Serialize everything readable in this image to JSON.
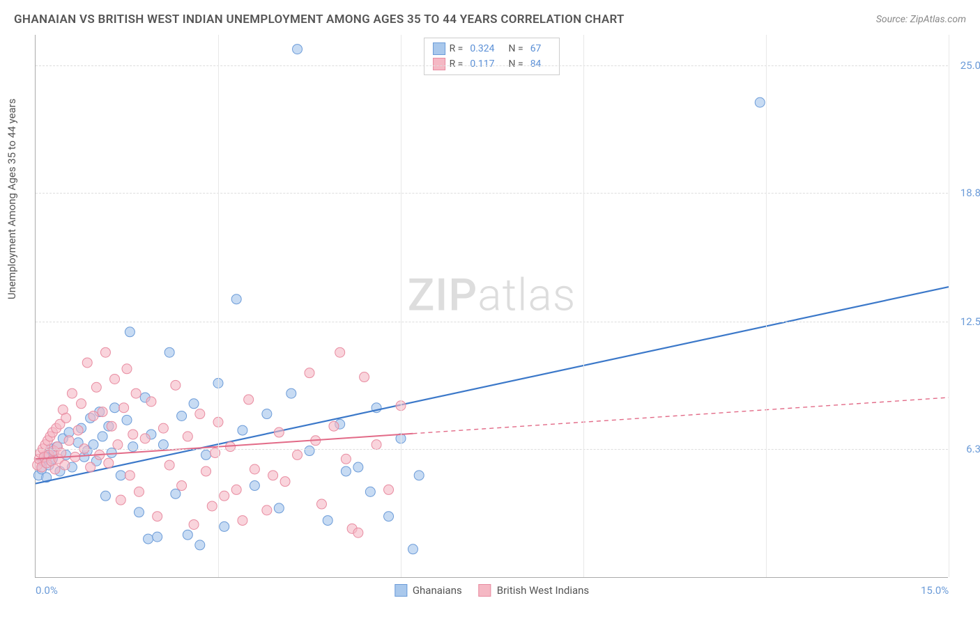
{
  "header": {
    "title": "GHANAIAN VS BRITISH WEST INDIAN UNEMPLOYMENT AMONG AGES 35 TO 44 YEARS CORRELATION CHART",
    "source": "Source: ZipAtlas.com"
  },
  "chart": {
    "type": "scatter",
    "ylabel": "Unemployment Among Ages 35 to 44 years",
    "watermark_zip": "ZIP",
    "watermark_atlas": "atlas",
    "xlim": [
      0,
      15
    ],
    "ylim": [
      0,
      26.5
    ],
    "x_ticks": [
      {
        "v": 0,
        "label": "0.0%"
      },
      {
        "v": 15,
        "label": "15.0%"
      }
    ],
    "x_gridlines": [
      3,
      6,
      9,
      12,
      15
    ],
    "y_ticks": [
      {
        "v": 6.3,
        "label": "6.3%"
      },
      {
        "v": 12.5,
        "label": "12.5%"
      },
      {
        "v": 18.8,
        "label": "18.8%"
      },
      {
        "v": 25.0,
        "label": "25.0%"
      }
    ],
    "background_color": "#ffffff",
    "grid_color": "#dddddd",
    "series": [
      {
        "name": "Ghanaians",
        "color_fill": "#a9c8ec",
        "color_stroke": "#6b9bd8",
        "r_value": "0.324",
        "n_value": "67",
        "marker_radius": 7,
        "marker_opacity": 0.65,
        "regression": {
          "x1": 0,
          "y1": 4.6,
          "x2": 15,
          "y2": 14.2,
          "solid_until_x": 15,
          "stroke": "#3b78c9",
          "width": 2.2
        },
        "points": [
          [
            0.05,
            5.0
          ],
          [
            0.1,
            5.3
          ],
          [
            0.12,
            5.7
          ],
          [
            0.15,
            5.9
          ],
          [
            0.18,
            4.9
          ],
          [
            0.2,
            6.0
          ],
          [
            0.22,
            5.5
          ],
          [
            0.25,
            6.3
          ],
          [
            0.28,
            5.8
          ],
          [
            0.3,
            6.1
          ],
          [
            0.35,
            6.4
          ],
          [
            0.4,
            5.2
          ],
          [
            0.45,
            6.8
          ],
          [
            0.5,
            6.0
          ],
          [
            0.55,
            7.1
          ],
          [
            0.6,
            5.4
          ],
          [
            0.7,
            6.6
          ],
          [
            0.75,
            7.3
          ],
          [
            0.8,
            5.9
          ],
          [
            0.85,
            6.2
          ],
          [
            0.9,
            7.8
          ],
          [
            0.95,
            6.5
          ],
          [
            1.0,
            5.7
          ],
          [
            1.05,
            8.1
          ],
          [
            1.1,
            6.9
          ],
          [
            1.15,
            4.0
          ],
          [
            1.2,
            7.4
          ],
          [
            1.25,
            6.1
          ],
          [
            1.3,
            8.3
          ],
          [
            1.4,
            5.0
          ],
          [
            1.5,
            7.7
          ],
          [
            1.55,
            12.0
          ],
          [
            1.6,
            6.4
          ],
          [
            1.7,
            3.2
          ],
          [
            1.8,
            8.8
          ],
          [
            1.85,
            1.9
          ],
          [
            1.9,
            7.0
          ],
          [
            2.0,
            2.0
          ],
          [
            2.1,
            6.5
          ],
          [
            2.2,
            11.0
          ],
          [
            2.3,
            4.1
          ],
          [
            2.4,
            7.9
          ],
          [
            2.5,
            2.1
          ],
          [
            2.6,
            8.5
          ],
          [
            2.7,
            1.6
          ],
          [
            2.8,
            6.0
          ],
          [
            3.0,
            9.5
          ],
          [
            3.1,
            2.5
          ],
          [
            3.3,
            13.6
          ],
          [
            3.4,
            7.2
          ],
          [
            3.6,
            4.5
          ],
          [
            3.8,
            8.0
          ],
          [
            4.0,
            3.4
          ],
          [
            4.2,
            9.0
          ],
          [
            4.3,
            25.8
          ],
          [
            4.5,
            6.2
          ],
          [
            4.8,
            2.8
          ],
          [
            5.0,
            7.5
          ],
          [
            5.1,
            5.2
          ],
          [
            5.3,
            5.4
          ],
          [
            5.5,
            4.2
          ],
          [
            5.6,
            8.3
          ],
          [
            5.8,
            3.0
          ],
          [
            6.0,
            6.8
          ],
          [
            6.2,
            1.4
          ],
          [
            6.3,
            5.0
          ],
          [
            11.9,
            23.2
          ]
        ]
      },
      {
        "name": "British West Indians",
        "color_fill": "#f5b8c4",
        "color_stroke": "#e88ba0",
        "r_value": "0.117",
        "n_value": "84",
        "marker_radius": 7,
        "marker_opacity": 0.6,
        "regression": {
          "x1": 0,
          "y1": 5.8,
          "x2": 15,
          "y2": 8.8,
          "solid_until_x": 6.2,
          "stroke": "#e26a87",
          "width": 2,
          "dash": "6,5"
        },
        "points": [
          [
            0.03,
            5.5
          ],
          [
            0.06,
            5.8
          ],
          [
            0.08,
            6.1
          ],
          [
            0.1,
            5.4
          ],
          [
            0.12,
            6.3
          ],
          [
            0.14,
            5.9
          ],
          [
            0.16,
            6.5
          ],
          [
            0.18,
            5.6
          ],
          [
            0.2,
            6.7
          ],
          [
            0.22,
            6.0
          ],
          [
            0.24,
            6.9
          ],
          [
            0.26,
            5.7
          ],
          [
            0.28,
            7.1
          ],
          [
            0.3,
            6.2
          ],
          [
            0.32,
            5.3
          ],
          [
            0.34,
            7.3
          ],
          [
            0.36,
            6.4
          ],
          [
            0.38,
            5.8
          ],
          [
            0.4,
            7.5
          ],
          [
            0.42,
            6.1
          ],
          [
            0.45,
            8.2
          ],
          [
            0.48,
            5.5
          ],
          [
            0.5,
            7.8
          ],
          [
            0.55,
            6.7
          ],
          [
            0.6,
            9.0
          ],
          [
            0.65,
            5.9
          ],
          [
            0.7,
            7.2
          ],
          [
            0.75,
            8.5
          ],
          [
            0.8,
            6.3
          ],
          [
            0.85,
            10.5
          ],
          [
            0.9,
            5.4
          ],
          [
            0.95,
            7.9
          ],
          [
            1.0,
            9.3
          ],
          [
            1.05,
            6.0
          ],
          [
            1.1,
            8.1
          ],
          [
            1.15,
            11.0
          ],
          [
            1.2,
            5.6
          ],
          [
            1.25,
            7.4
          ],
          [
            1.3,
            9.7
          ],
          [
            1.35,
            6.5
          ],
          [
            1.4,
            3.8
          ],
          [
            1.45,
            8.3
          ],
          [
            1.5,
            10.2
          ],
          [
            1.55,
            5.0
          ],
          [
            1.6,
            7.0
          ],
          [
            1.65,
            9.0
          ],
          [
            1.7,
            4.2
          ],
          [
            1.8,
            6.8
          ],
          [
            1.9,
            8.6
          ],
          [
            2.0,
            3.0
          ],
          [
            2.1,
            7.3
          ],
          [
            2.2,
            5.5
          ],
          [
            2.3,
            9.4
          ],
          [
            2.4,
            4.5
          ],
          [
            2.5,
            6.9
          ],
          [
            2.6,
            2.6
          ],
          [
            2.7,
            8.0
          ],
          [
            2.8,
            5.2
          ],
          [
            2.9,
            3.5
          ],
          [
            3.0,
            7.6
          ],
          [
            3.1,
            4.0
          ],
          [
            3.2,
            6.4
          ],
          [
            3.4,
            2.8
          ],
          [
            3.5,
            8.7
          ],
          [
            3.6,
            5.3
          ],
          [
            3.8,
            3.3
          ],
          [
            4.0,
            7.1
          ],
          [
            4.1,
            4.7
          ],
          [
            4.3,
            6.0
          ],
          [
            4.5,
            10.0
          ],
          [
            4.7,
            3.6
          ],
          [
            4.9,
            7.4
          ],
          [
            5.0,
            11.0
          ],
          [
            5.1,
            5.8
          ],
          [
            5.2,
            2.4
          ],
          [
            5.4,
            9.8
          ],
          [
            5.6,
            6.5
          ],
          [
            5.8,
            4.3
          ],
          [
            6.0,
            8.4
          ],
          [
            5.3,
            2.2
          ],
          [
            4.6,
            6.7
          ],
          [
            3.9,
            5.0
          ],
          [
            3.3,
            4.3
          ],
          [
            2.95,
            6.1
          ]
        ]
      }
    ],
    "legend_bottom": [
      {
        "label": "Ghanaians",
        "fill": "#a9c8ec",
        "stroke": "#6b9bd8"
      },
      {
        "label": "British West Indians",
        "fill": "#f5b8c4",
        "stroke": "#e88ba0"
      }
    ]
  }
}
